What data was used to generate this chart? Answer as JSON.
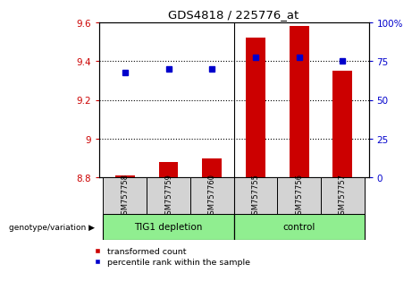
{
  "title": "GDS4818 / 225776_at",
  "samples": [
    "GSM757758",
    "GSM757759",
    "GSM757760",
    "GSM757755",
    "GSM757756",
    "GSM757757"
  ],
  "groups": [
    "TIG1 depletion",
    "TIG1 depletion",
    "TIG1 depletion",
    "control",
    "control",
    "control"
  ],
  "bar_values": [
    8.81,
    8.88,
    8.9,
    9.52,
    9.58,
    9.35
  ],
  "dot_values": [
    9.34,
    9.36,
    9.36,
    9.42,
    9.42,
    9.4
  ],
  "ylim_left": [
    8.8,
    9.6
  ],
  "ylim_right": [
    0,
    100
  ],
  "yticks_left": [
    8.8,
    9.0,
    9.2,
    9.4,
    9.6
  ],
  "ytick_labels_left": [
    "8.8",
    "9",
    "9.2",
    "9.4",
    "9.6"
  ],
  "yticks_right": [
    0,
    25,
    50,
    75,
    100
  ],
  "ytick_labels_right": [
    "0",
    "25",
    "50",
    "75",
    "100%"
  ],
  "bar_color": "#CC0000",
  "dot_color": "#0000CC",
  "bar_baseline": 8.8,
  "legend_bar_label": "transformed count",
  "legend_dot_label": "percentile rank within the sample",
  "genotype_label": "genotype/variation",
  "separator_x": 3,
  "group_info": [
    {
      "label": "TIG1 depletion",
      "start": 0,
      "end": 3,
      "color": "#90EE90"
    },
    {
      "label": "control",
      "start": 3,
      "end": 6,
      "color": "#90EE90"
    }
  ],
  "hgrid_vals": [
    9.0,
    9.2,
    9.4
  ],
  "bar_width": 0.45,
  "xlim": [
    -0.6,
    5.6
  ]
}
